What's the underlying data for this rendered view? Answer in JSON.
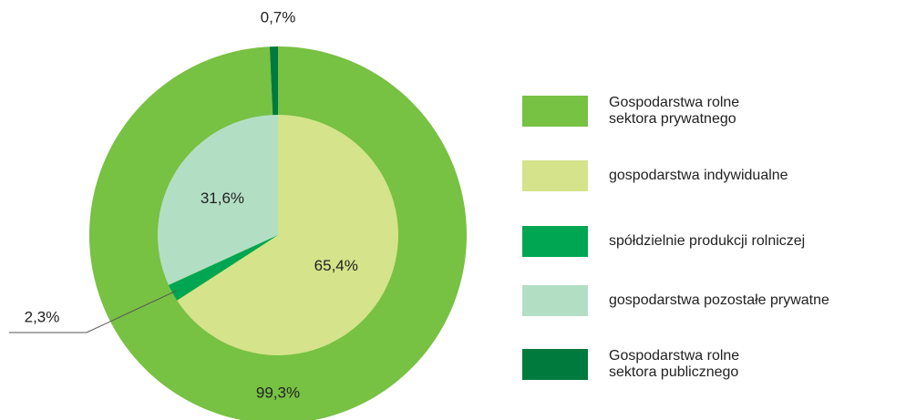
{
  "chart_data": {
    "type": "pie",
    "categories": [
      "Gospodarstwa rolne\nsektora prywatnego",
      "gospodarstwa indywidualne",
      "spółdzielnie produkcji rolniczej",
      "gospodarstwa pozostałe prywatne",
      "Gospodarstwa rolne\nsektora publicznego"
    ],
    "values": [
      99.3,
      65.4,
      2.3,
      31.6,
      0.7
    ],
    "value_labels": [
      "99,3%",
      "65,4%",
      "2,3%",
      "31,6%",
      "0,7%"
    ],
    "ring": [
      "outer",
      "inner",
      "inner",
      "inner",
      "outer"
    ],
    "colors": [
      "#77c143",
      "#d5e38a",
      "#00a651",
      "#b2dfc4",
      "#007a3d"
    ],
    "legend": "right"
  }
}
